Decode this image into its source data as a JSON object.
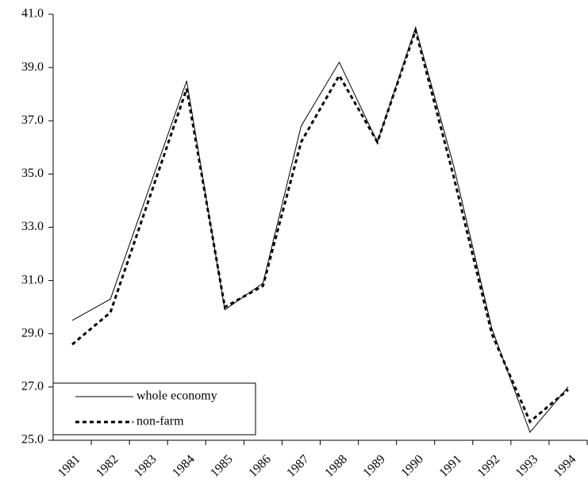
{
  "chart_data": {
    "type": "line",
    "categories": [
      "1981",
      "1982",
      "1983",
      "1984",
      "1985",
      "1986",
      "1987",
      "1988",
      "1989",
      "1990",
      "1991",
      "1992",
      "1993",
      "1994"
    ],
    "series": [
      {
        "name": "whole economy",
        "color": "#000000",
        "dash": "solid",
        "values": [
          29.5,
          30.3,
          34.4,
          38.5,
          29.9,
          30.9,
          36.8,
          39.2,
          36.2,
          40.5,
          35.3,
          29.2,
          25.3,
          27.0
        ]
      },
      {
        "name": "non-farm",
        "color": "#000000",
        "dash": "dashed",
        "values": [
          28.6,
          29.8,
          34.0,
          38.2,
          30.0,
          30.8,
          36.2,
          38.7,
          36.2,
          40.4,
          34.9,
          29.0,
          25.7,
          26.9
        ]
      }
    ],
    "ylim": [
      25,
      41
    ],
    "yticks": [
      {
        "value": 25,
        "label": "25.0"
      },
      {
        "value": 27,
        "label": "27.0"
      },
      {
        "value": 29,
        "label": "29.0"
      },
      {
        "value": 31,
        "label": "31.0"
      },
      {
        "value": 33,
        "label": "33.0"
      },
      {
        "value": 35,
        "label": "35.0"
      },
      {
        "value": 37,
        "label": "37.0"
      },
      {
        "value": 39,
        "label": "39.0"
      },
      {
        "value": 41,
        "label": "41.0"
      }
    ],
    "legend": "lower left"
  }
}
